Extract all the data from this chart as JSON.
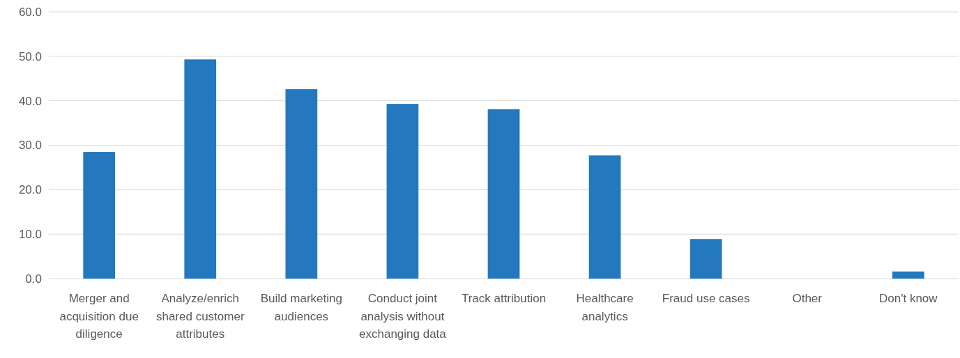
{
  "chart_data": {
    "type": "bar",
    "categories": [
      "Merger and acquisition due diligence",
      "Analyze/enrich shared customer attributes",
      "Build marketing audiences",
      "Conduct joint analysis without exchanging data",
      "Track attribution",
      "Healthcare analytics",
      "Fraud use cases",
      "Other",
      "Don't know"
    ],
    "values": [
      28.5,
      49.3,
      42.6,
      39.3,
      38.1,
      27.7,
      8.9,
      0,
      1.6
    ],
    "color": "#2378be",
    "ylim": [
      0,
      60
    ],
    "yticks": [
      {
        "value": 0,
        "label": "0.0"
      },
      {
        "value": 10,
        "label": "10.0"
      },
      {
        "value": 20,
        "label": "20.0"
      },
      {
        "value": 30,
        "label": "30.0"
      },
      {
        "value": 40,
        "label": "40.0"
      },
      {
        "value": 50,
        "label": "50.0"
      },
      {
        "value": 60,
        "label": "60.0"
      }
    ],
    "grid": "y"
  }
}
